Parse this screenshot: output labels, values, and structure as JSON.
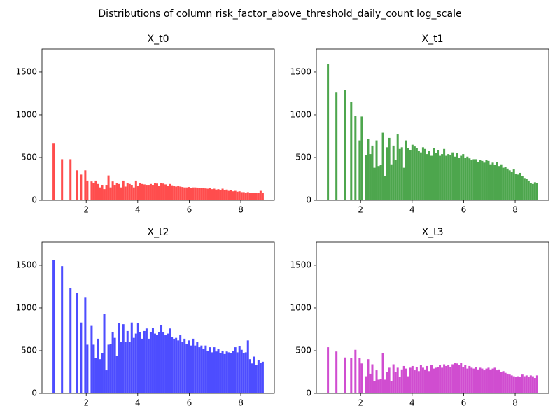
{
  "title": "Distributions of column risk_factor_above_threshold_daily_count log_scale",
  "chart_data": [
    {
      "type": "histogram",
      "title": "X_t0",
      "color": "#ff4d4d",
      "bins": [
        0.693,
        0.775,
        0.857,
        0.939,
        1.021,
        1.103,
        1.185,
        1.267,
        1.349,
        1.431,
        1.513,
        1.595,
        1.677,
        1.759,
        1.841,
        1.923,
        2.005,
        2.087,
        2.169,
        2.251,
        2.333,
        2.415,
        2.497,
        2.579,
        2.661,
        2.743,
        2.825,
        2.907,
        2.989,
        3.071,
        3.153,
        3.235,
        3.317,
        3.399,
        3.481,
        3.563,
        3.645,
        3.727,
        3.809,
        3.891,
        3.973,
        4.055,
        4.137,
        4.219,
        4.301,
        4.383,
        4.465,
        4.547,
        4.629,
        4.711,
        4.793,
        4.875,
        4.957,
        5.039,
        5.121,
        5.203,
        5.285,
        5.367,
        5.449,
        5.531,
        5.613,
        5.695,
        5.777,
        5.859,
        5.941,
        6.023,
        6.105,
        6.187,
        6.269,
        6.351,
        6.433,
        6.515,
        6.597,
        6.679,
        6.761,
        6.843,
        6.925,
        7.007,
        7.089,
        7.171,
        7.253,
        7.335,
        7.417,
        7.499,
        7.581,
        7.663,
        7.745,
        7.827,
        7.909,
        7.991,
        8.073,
        8.155,
        8.237,
        8.319,
        8.401,
        8.483,
        8.565,
        8.647,
        8.729,
        8.811,
        8.893
      ],
      "values": [
        670,
        0,
        0,
        0,
        480,
        0,
        0,
        0,
        480,
        0,
        0,
        350,
        0,
        300,
        0,
        350,
        230,
        0,
        220,
        200,
        230,
        190,
        150,
        180,
        130,
        180,
        290,
        150,
        220,
        180,
        200,
        190,
        150,
        230,
        160,
        200,
        190,
        180,
        150,
        230,
        170,
        200,
        190,
        185,
        180,
        180,
        190,
        180,
        200,
        195,
        170,
        200,
        195,
        185,
        170,
        190,
        175,
        170,
        160,
        165,
        160,
        155,
        150,
        150,
        155,
        145,
        150,
        150,
        148,
        145,
        140,
        145,
        138,
        135,
        140,
        130,
        135,
        125,
        130,
        120,
        135,
        120,
        125,
        110,
        115,
        105,
        110,
        100,
        105,
        95,
        95,
        90,
        95,
        90,
        90,
        90,
        90,
        88,
        110,
        85
      ],
      "xlim": [
        0.283,
        9.303
      ],
      "ylim": [
        0,
        1770
      ],
      "xticks": [
        2,
        4,
        6,
        8
      ],
      "yticks": [
        0,
        500,
        1000,
        1500
      ]
    },
    {
      "type": "histogram",
      "title": "X_t1",
      "color": "#4da64d",
      "bins": [
        0.693,
        0.775,
        0.857,
        0.939,
        1.021,
        1.103,
        1.185,
        1.267,
        1.349,
        1.431,
        1.513,
        1.595,
        1.677,
        1.759,
        1.841,
        1.923,
        2.005,
        2.087,
        2.169,
        2.251,
        2.333,
        2.415,
        2.497,
        2.579,
        2.661,
        2.743,
        2.825,
        2.907,
        2.989,
        3.071,
        3.153,
        3.235,
        3.317,
        3.399,
        3.481,
        3.563,
        3.645,
        3.727,
        3.809,
        3.891,
        3.973,
        4.055,
        4.137,
        4.219,
        4.301,
        4.383,
        4.465,
        4.547,
        4.629,
        4.711,
        4.793,
        4.875,
        4.957,
        5.039,
        5.121,
        5.203,
        5.285,
        5.367,
        5.449,
        5.531,
        5.613,
        5.695,
        5.777,
        5.859,
        5.941,
        6.023,
        6.105,
        6.187,
        6.269,
        6.351,
        6.433,
        6.515,
        6.597,
        6.679,
        6.761,
        6.843,
        6.925,
        7.007,
        7.089,
        7.171,
        7.253,
        7.335,
        7.417,
        7.499,
        7.581,
        7.663,
        7.745,
        7.827,
        7.909,
        7.991,
        8.073,
        8.155,
        8.237,
        8.319,
        8.401,
        8.483,
        8.565,
        8.647,
        8.729,
        8.811,
        8.893
      ],
      "values": [
        1590,
        0,
        0,
        0,
        1260,
        0,
        0,
        0,
        1290,
        0,
        0,
        1150,
        0,
        990,
        0,
        700,
        980,
        0,
        530,
        720,
        540,
        640,
        380,
        700,
        400,
        410,
        790,
        280,
        620,
        730,
        420,
        640,
        470,
        770,
        600,
        620,
        380,
        700,
        610,
        590,
        650,
        630,
        610,
        580,
        560,
        620,
        600,
        540,
        580,
        520,
        610,
        550,
        590,
        520,
        540,
        600,
        520,
        540,
        530,
        560,
        510,
        550,
        500,
        520,
        540,
        500,
        510,
        490,
        470,
        480,
        480,
        450,
        470,
        460,
        440,
        470,
        460,
        420,
        440,
        410,
        450,
        400,
        420,
        380,
        390,
        370,
        350,
        330,
        360,
        310,
        300,
        320,
        280,
        260,
        250,
        230,
        200,
        190,
        210,
        200
      ],
      "xlim": [
        0.283,
        9.303
      ],
      "ylim": [
        0,
        1770
      ],
      "xticks": [
        2,
        4,
        6,
        8
      ],
      "yticks": [
        0,
        500,
        1000,
        1500
      ]
    },
    {
      "type": "histogram",
      "title": "X_t2",
      "color": "#4d4dff",
      "bins": [
        0.693,
        0.775,
        0.857,
        0.939,
        1.021,
        1.103,
        1.185,
        1.267,
        1.349,
        1.431,
        1.513,
        1.595,
        1.677,
        1.759,
        1.841,
        1.923,
        2.005,
        2.087,
        2.169,
        2.251,
        2.333,
        2.415,
        2.497,
        2.579,
        2.661,
        2.743,
        2.825,
        2.907,
        2.989,
        3.071,
        3.153,
        3.235,
        3.317,
        3.399,
        3.481,
        3.563,
        3.645,
        3.727,
        3.809,
        3.891,
        3.973,
        4.055,
        4.137,
        4.219,
        4.301,
        4.383,
        4.465,
        4.547,
        4.629,
        4.711,
        4.793,
        4.875,
        4.957,
        5.039,
        5.121,
        5.203,
        5.285,
        5.367,
        5.449,
        5.531,
        5.613,
        5.695,
        5.777,
        5.859,
        5.941,
        6.023,
        6.105,
        6.187,
        6.269,
        6.351,
        6.433,
        6.515,
        6.597,
        6.679,
        6.761,
        6.843,
        6.925,
        7.007,
        7.089,
        7.171,
        7.253,
        7.335,
        7.417,
        7.499,
        7.581,
        7.663,
        7.745,
        7.827,
        7.909,
        7.991,
        8.073,
        8.155,
        8.237,
        8.319,
        8.401,
        8.483,
        8.565,
        8.647,
        8.729,
        8.811,
        8.893
      ],
      "values": [
        1560,
        0,
        0,
        0,
        1490,
        0,
        0,
        0,
        1230,
        0,
        0,
        1180,
        0,
        830,
        0,
        1120,
        570,
        0,
        790,
        570,
        410,
        640,
        400,
        470,
        930,
        270,
        570,
        580,
        720,
        650,
        440,
        820,
        600,
        810,
        600,
        730,
        600,
        830,
        650,
        700,
        820,
        720,
        640,
        730,
        760,
        640,
        720,
        770,
        700,
        680,
        720,
        800,
        720,
        680,
        700,
        760,
        660,
        640,
        650,
        620,
        680,
        600,
        640,
        580,
        620,
        560,
        640,
        560,
        600,
        540,
        560,
        520,
        560,
        500,
        540,
        480,
        540,
        490,
        520,
        470,
        500,
        460,
        490,
        480,
        470,
        500,
        540,
        480,
        550,
        510,
        470,
        480,
        620,
        400,
        350,
        430,
        330,
        390,
        360,
        370
      ],
      "xlim": [
        0.283,
        9.303
      ],
      "ylim": [
        0,
        1770
      ],
      "xticks": [
        2,
        4,
        6,
        8
      ],
      "yticks": [
        0,
        500,
        1000,
        1500
      ]
    },
    {
      "type": "histogram",
      "title": "X_t3",
      "color": "#d04dd0",
      "bins": [
        0.693,
        0.775,
        0.857,
        0.939,
        1.021,
        1.103,
        1.185,
        1.267,
        1.349,
        1.431,
        1.513,
        1.595,
        1.677,
        1.759,
        1.841,
        1.923,
        2.005,
        2.087,
        2.169,
        2.251,
        2.333,
        2.415,
        2.497,
        2.579,
        2.661,
        2.743,
        2.825,
        2.907,
        2.989,
        3.071,
        3.153,
        3.235,
        3.317,
        3.399,
        3.481,
        3.563,
        3.645,
        3.727,
        3.809,
        3.891,
        3.973,
        4.055,
        4.137,
        4.219,
        4.301,
        4.383,
        4.465,
        4.547,
        4.629,
        4.711,
        4.793,
        4.875,
        4.957,
        5.039,
        5.121,
        5.203,
        5.285,
        5.367,
        5.449,
        5.531,
        5.613,
        5.695,
        5.777,
        5.859,
        5.941,
        6.023,
        6.105,
        6.187,
        6.269,
        6.351,
        6.433,
        6.515,
        6.597,
        6.679,
        6.761,
        6.843,
        6.925,
        7.007,
        7.089,
        7.171,
        7.253,
        7.335,
        7.417,
        7.499,
        7.581,
        7.663,
        7.745,
        7.827,
        7.909,
        7.991,
        8.073,
        8.155,
        8.237,
        8.319,
        8.401,
        8.483,
        8.565,
        8.647,
        8.729,
        8.811,
        8.893
      ],
      "values": [
        540,
        0,
        0,
        0,
        490,
        0,
        0,
        0,
        420,
        0,
        0,
        410,
        0,
        510,
        0,
        410,
        350,
        0,
        200,
        400,
        230,
        340,
        140,
        270,
        160,
        170,
        470,
        160,
        250,
        300,
        140,
        340,
        250,
        300,
        190,
        280,
        320,
        290,
        200,
        300,
        320,
        270,
        310,
        260,
        330,
        300,
        280,
        320,
        260,
        330,
        290,
        300,
        310,
        330,
        300,
        340,
        320,
        330,
        310,
        340,
        360,
        350,
        330,
        360,
        310,
        330,
        290,
        320,
        300,
        290,
        310,
        280,
        300,
        290,
        270,
        290,
        300,
        280,
        290,
        300,
        270,
        280,
        250,
        260,
        240,
        230,
        220,
        210,
        200,
        190,
        200,
        190,
        220,
        200,
        210,
        190,
        210,
        200,
        180,
        210
      ],
      "xlim": [
        0.283,
        9.303
      ],
      "ylim": [
        0,
        1770
      ],
      "xticks": [
        2,
        4,
        6,
        8
      ],
      "yticks": [
        0,
        500,
        1000,
        1500
      ]
    }
  ]
}
